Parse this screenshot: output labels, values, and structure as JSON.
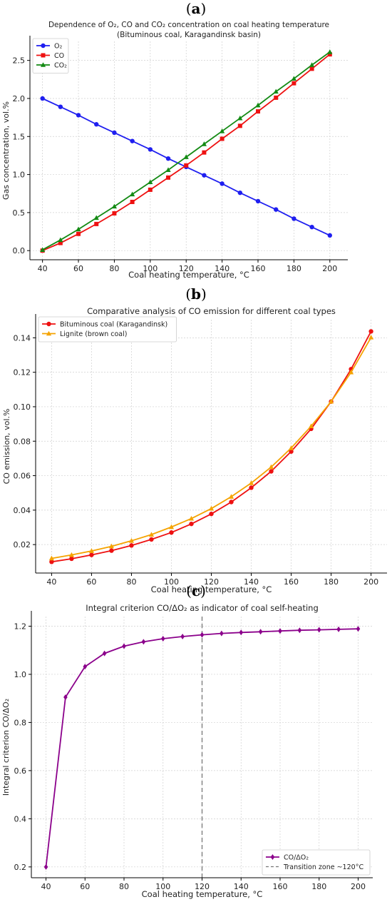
{
  "panels": [
    {
      "letter_prefix": "(",
      "letter": "a",
      "letter_suffix": ")"
    },
    {
      "letter_prefix": "(",
      "letter": "b",
      "letter_suffix": ")"
    },
    {
      "letter_prefix": "(",
      "letter": "c",
      "letter_suffix": ")"
    }
  ],
  "colors": {
    "blue": "#1f1ff0",
    "red": "#ee1111",
    "green": "#138a13",
    "orange": "#f5a300",
    "purple": "#8b008b",
    "grey": "#777777"
  },
  "chart_data": [
    {
      "type": "line",
      "title": "Dependence of O₂, CO and CO₂ concentration on coal heating temperature",
      "subtitle": "(Bituminous coal, Karagandinsk basin)",
      "xlabel": "Coal heating temperature, °C",
      "ylabel": "Gas concentration, vol.%",
      "x": [
        40,
        50,
        60,
        70,
        80,
        90,
        100,
        110,
        120,
        130,
        140,
        150,
        160,
        170,
        180,
        190,
        200
      ],
      "xlim": [
        33,
        210
      ],
      "ylim": [
        -0.12,
        2.75
      ],
      "xticks": [
        40,
        60,
        80,
        100,
        120,
        140,
        160,
        180,
        200
      ],
      "yticks": [
        "0.0",
        "0.5",
        "1.0",
        "1.5",
        "2.0",
        "2.5"
      ],
      "grid": true,
      "legend_position": "top-left",
      "series": [
        {
          "name": "O₂",
          "color": "#1f1ff0",
          "marker": "circle",
          "values": [
            2.0,
            1.89,
            1.78,
            1.66,
            1.55,
            1.44,
            1.33,
            1.21,
            1.1,
            0.99,
            0.88,
            0.76,
            0.65,
            0.54,
            0.42,
            0.31,
            0.2
          ]
        },
        {
          "name": "CO",
          "color": "#ee1111",
          "marker": "square",
          "values": [
            0.0,
            0.1,
            0.22,
            0.35,
            0.49,
            0.64,
            0.8,
            0.96,
            1.12,
            1.29,
            1.47,
            1.64,
            1.83,
            2.01,
            2.2,
            2.39,
            2.58
          ]
        },
        {
          "name": "CO₂",
          "color": "#138a13",
          "marker": "triangle",
          "values": [
            0.01,
            0.14,
            0.28,
            0.43,
            0.58,
            0.74,
            0.9,
            1.06,
            1.23,
            1.4,
            1.57,
            1.74,
            1.91,
            2.09,
            2.26,
            2.44,
            2.61
          ]
        }
      ]
    },
    {
      "type": "line",
      "title": "Comparative analysis of CO emission for different coal types",
      "xlabel": "Coal heating temperature, °C",
      "ylabel": "CO emission, vol.%",
      "x": [
        40,
        50,
        60,
        70,
        80,
        90,
        100,
        110,
        120,
        130,
        140,
        150,
        160,
        170,
        180,
        190,
        200
      ],
      "xlim": [
        32,
        208
      ],
      "ylim": [
        0.0035,
        0.1505
      ],
      "xticks": [
        40,
        60,
        80,
        100,
        120,
        140,
        160,
        180,
        200
      ],
      "yticks": [
        "0.02",
        "0.04",
        "0.06",
        "0.08",
        "0.10",
        "0.12",
        "0.14"
      ],
      "grid": true,
      "legend_position": "top-left",
      "series": [
        {
          "name": "Bituminous coal (Karagandinsk)",
          "color": "#ee1111",
          "marker": "circle",
          "values": [
            0.01,
            0.0118,
            0.014,
            0.0165,
            0.0195,
            0.023,
            0.027,
            0.032,
            0.0378,
            0.0447,
            0.053,
            0.0625,
            0.074,
            0.0872,
            0.103,
            0.1218,
            0.1437
          ]
        },
        {
          "name": "Lignite (brown coal)",
          "color": "#f5a300",
          "marker": "triangle",
          "values": [
            0.012,
            0.014,
            0.0163,
            0.019,
            0.0222,
            0.0258,
            0.0302,
            0.0351,
            0.0409,
            0.0478,
            0.0557,
            0.065,
            0.076,
            0.0887,
            0.103,
            0.12,
            0.1402
          ]
        }
      ]
    },
    {
      "type": "line",
      "title": "Integral criterion CO/ΔO₂ as indicator of coal self-heating",
      "xlabel": "Coal heating temperature, °C",
      "ylabel": "Integral criterion CO/ΔO₂",
      "x": [
        40,
        50,
        60,
        70,
        80,
        90,
        100,
        110,
        120,
        130,
        140,
        150,
        160,
        170,
        180,
        190,
        200
      ],
      "xlim": [
        32.5,
        207.5
      ],
      "ylim": [
        0.155,
        1.24
      ],
      "xticks": [
        40,
        60,
        80,
        100,
        120,
        140,
        160,
        180,
        200
      ],
      "yticks": [
        "0.2",
        "0.4",
        "0.6",
        "0.8",
        "1.0",
        "1.2"
      ],
      "grid": true,
      "legend_position": "bottom-right",
      "vline": {
        "x": 120,
        "label": "Transition zone ~120°C",
        "color": "#777777"
      },
      "series": [
        {
          "name": "CO/ΔO₂",
          "color": "#8b008b",
          "marker": "diamond",
          "values": [
            0.2,
            0.905,
            1.032,
            1.087,
            1.117,
            1.135,
            1.148,
            1.157,
            1.164,
            1.17,
            1.174,
            1.177,
            1.18,
            1.183,
            1.185,
            1.187,
            1.189
          ]
        }
      ]
    }
  ]
}
